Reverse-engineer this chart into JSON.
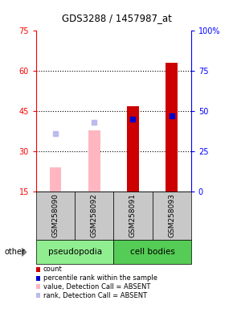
{
  "title": "GDS3288 / 1457987_at",
  "samples": [
    "GSM258090",
    "GSM258092",
    "GSM258091",
    "GSM258093"
  ],
  "groups": [
    "pseudopodia",
    "pseudopodia",
    "cell bodies",
    "cell bodies"
  ],
  "ylim_left": [
    15,
    75
  ],
  "ylim_right": [
    0,
    100
  ],
  "yticks_left": [
    15,
    30,
    45,
    60,
    75
  ],
  "yticks_right": [
    0,
    25,
    50,
    75,
    100
  ],
  "ytick_right_labels": [
    "0",
    "25",
    "50",
    "75",
    "100%"
  ],
  "bar_values": [
    24,
    38,
    47,
    63
  ],
  "bar_colors": [
    "#FFB6C1",
    "#FFB6C1",
    "#CC0000",
    "#CC0000"
  ],
  "rank_values": [
    36,
    43,
    45,
    47
  ],
  "rank_colors": [
    "#BBBBEE",
    "#BBBBEE",
    "#0000CC",
    "#0000CC"
  ],
  "dotted_yticks": [
    30,
    45,
    60
  ],
  "label_colors": [
    "#C8C8C8",
    "#C8C8C8",
    "#C8C8C8",
    "#C8C8C8"
  ],
  "group_specs": [
    {
      "label": "pseudopodia",
      "start": 0,
      "end": 2,
      "color": "#90EE90"
    },
    {
      "label": "cell bodies",
      "start": 2,
      "end": 4,
      "color": "#55CC55"
    }
  ],
  "legend_items": [
    {
      "label": "count",
      "color": "#CC0000"
    },
    {
      "label": "percentile rank within the sample",
      "color": "#0000CC"
    },
    {
      "label": "value, Detection Call = ABSENT",
      "color": "#FFB6C1"
    },
    {
      "label": "rank, Detection Call = ABSENT",
      "color": "#BBBBEE"
    }
  ]
}
